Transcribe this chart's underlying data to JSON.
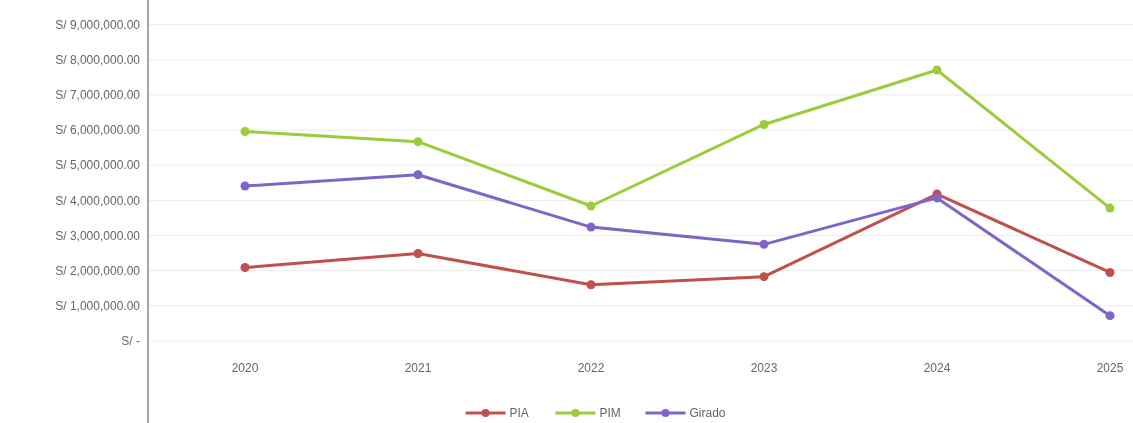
{
  "chart_data": {
    "type": "line",
    "categories": [
      "2020",
      "2021",
      "2022",
      "2023",
      "2024",
      "2025"
    ],
    "series": [
      {
        "name": "PIA",
        "color": "#c0504d",
        "values": [
          2090000,
          2490000,
          1600000,
          1830000,
          4180000,
          1950000
        ]
      },
      {
        "name": "PIM",
        "color": "#9bcc3c",
        "values": [
          5960000,
          5670000,
          3840000,
          6160000,
          7710000,
          3780000
        ]
      },
      {
        "name": "Girado",
        "color": "#8064c8",
        "values": [
          4410000,
          4730000,
          3240000,
          2750000,
          4070000,
          720000
        ]
      }
    ],
    "ylim": [
      0,
      9700000
    ],
    "yticks": [
      {
        "value": 0,
        "label": "S/ -"
      },
      {
        "value": 1000000,
        "label": "S/ 1,000,000.00"
      },
      {
        "value": 2000000,
        "label": "S/ 2,000,000.00"
      },
      {
        "value": 3000000,
        "label": "S/ 3,000,000.00"
      },
      {
        "value": 4000000,
        "label": "S/ 4,000,000.00"
      },
      {
        "value": 5000000,
        "label": "S/ 5,000,000.00"
      },
      {
        "value": 6000000,
        "label": "S/ 6,000,000.00"
      },
      {
        "value": 7000000,
        "label": "S/ 7,000,000.00"
      },
      {
        "value": 8000000,
        "label": "S/ 8,000,000.00"
      },
      {
        "value": 9000000,
        "label": "S/ 9,000,000.00"
      }
    ],
    "grid": "y",
    "legend": "bottom",
    "marker": "circle",
    "line_style": "solid"
  }
}
